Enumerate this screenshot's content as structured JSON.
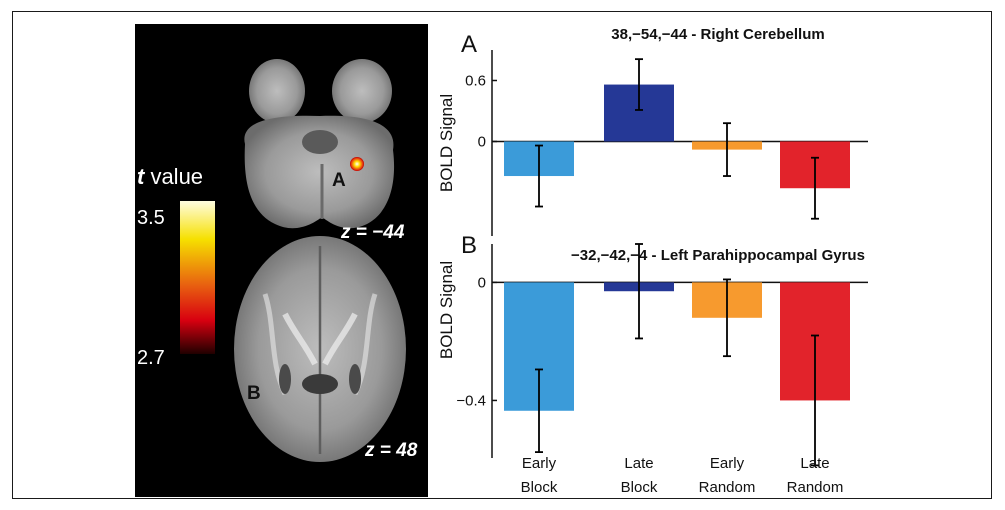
{
  "brain": {
    "scale_title_italic": "t",
    "scale_title_rest": " value",
    "scale_max": "3.5",
    "scale_min": "2.7",
    "slice_top_label": "z = −44",
    "slice_bottom_label": "z = 48",
    "marker_a": "A",
    "marker_b": "B",
    "colors": {
      "scale_top": "#fffde0",
      "scale_upper": "#f6e000",
      "scale_mid": "#e86010",
      "scale_lower": "#d80010",
      "scale_bottom": "#200000"
    }
  },
  "chart_data": [
    {
      "type": "bar",
      "panel_label": "A",
      "title": "38,−54,−44 - Right Cerebellum",
      "ylabel": "BOLD Signal",
      "ylim": [
        -0.93,
        0.9
      ],
      "yticks": [
        {
          "value": 0.6,
          "label": "0.6"
        },
        {
          "value": 0,
          "label": "0"
        }
      ],
      "categories": [
        "Early Block",
        "Late Block",
        "Early Random",
        "Late Random"
      ],
      "series": [
        {
          "values": [
            -0.34,
            0.56,
            -0.08,
            -0.46
          ],
          "errors": [
            0.3,
            0.25,
            0.26,
            0.3
          ],
          "colors": [
            "#3b9bd9",
            "#253896",
            "#f79a2e",
            "#e2232b"
          ]
        }
      ]
    },
    {
      "type": "bar",
      "panel_label": "B",
      "title": "−32,−42,−4 - Left Parahippocampal Gyrus",
      "ylabel": "BOLD Signal",
      "ylim": [
        -0.595,
        0.13
      ],
      "yticks": [
        {
          "value": 0,
          "label": "0"
        },
        {
          "value": -0.4,
          "label": "−0.4"
        }
      ],
      "categories": [
        "Early Block",
        "Late Block",
        "Early Random",
        "Late Random"
      ],
      "series": [
        {
          "values": [
            -0.435,
            -0.03,
            -0.12,
            -0.4
          ],
          "errors": [
            0.14,
            0.16,
            0.13,
            0.22
          ],
          "colors": [
            "#3b9bd9",
            "#253896",
            "#f79a2e",
            "#e2232b"
          ]
        }
      ]
    }
  ],
  "categories_lines": [
    [
      "Early",
      "Block"
    ],
    [
      "Late",
      "Block"
    ],
    [
      "Early",
      "Random"
    ],
    [
      "Late",
      "Random"
    ]
  ]
}
